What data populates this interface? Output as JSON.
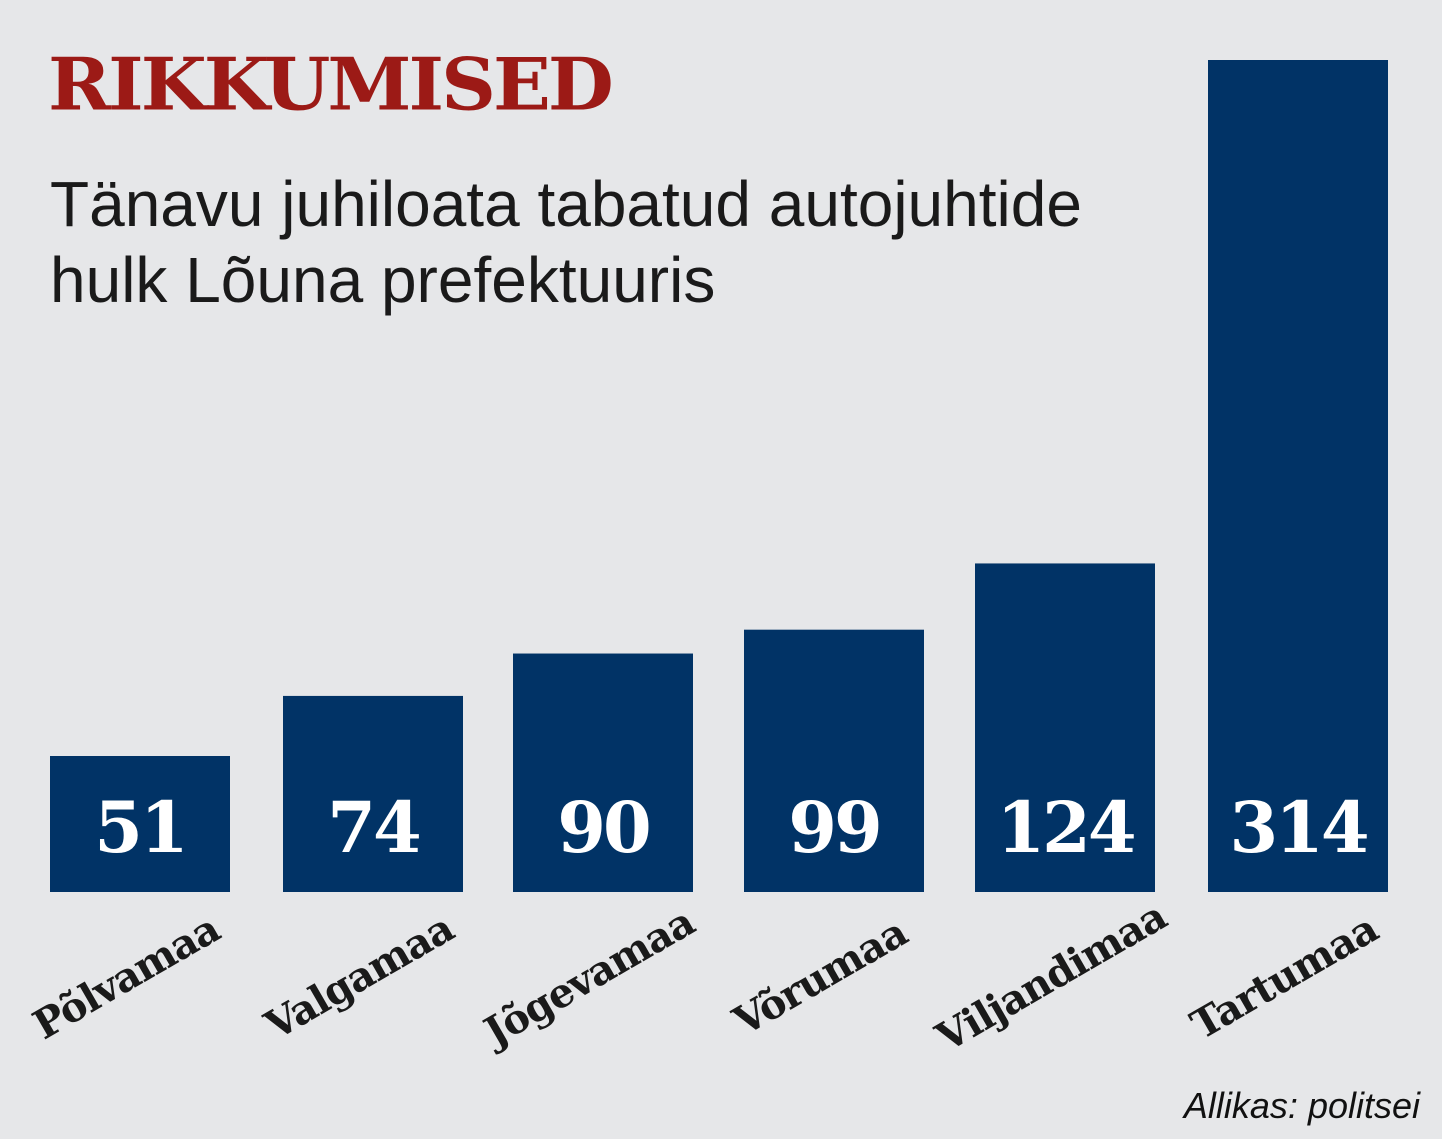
{
  "header": {
    "title": "RIKKUMISED",
    "subtitle": "Tänavu juhiloata tabatud autojuhtide hulk Lõuna prefektuuris"
  },
  "footer": {
    "source": "Allikas: politsei"
  },
  "colors": {
    "background": "#e6e7e9",
    "title": "#9c1a16",
    "bar": "#013366",
    "bar_label": "#ffffff",
    "category_label": "#1a1a1a"
  },
  "chart_data": {
    "type": "bar",
    "title": "",
    "xlabel": "",
    "ylabel": "",
    "categories": [
      "Põlvamaa",
      "Valgamaa",
      "Jõgevamaa",
      "Võrumaa",
      "Viljandimaa",
      "Tartumaa"
    ],
    "values": [
      51,
      74,
      90,
      99,
      124,
      314
    ],
    "ylim": [
      0,
      314
    ],
    "grid": false,
    "legend": "none",
    "data_labels": "inside-bar-bottom",
    "category_label_rotation": -30
  }
}
